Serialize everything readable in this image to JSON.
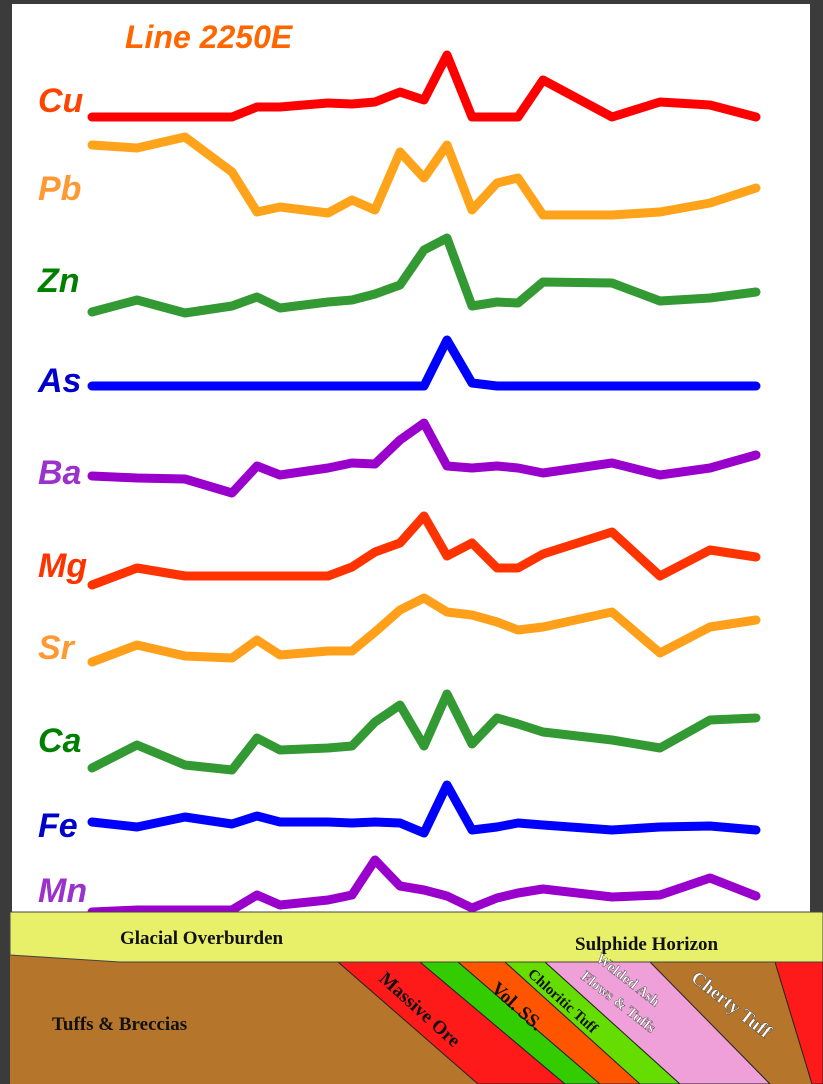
{
  "title": "Line 2250E",
  "title_color": "#ff6600",
  "profiles": [
    {
      "name": "Cu",
      "color": "#ff0000",
      "label_color": "#ff4400",
      "values": [
        1,
        1,
        1,
        1,
        11,
        11,
        15,
        14,
        16,
        26,
        18,
        63,
        1,
        1,
        1,
        38,
        1,
        16,
        13,
        1
      ]
    },
    {
      "name": "Pb",
      "color": "#ffa31a",
      "label_color": "#ff9933",
      "values": [
        75,
        72,
        83,
        48,
        8,
        13,
        7,
        20,
        10,
        68,
        42,
        75,
        10,
        37,
        42,
        5,
        5,
        8,
        17,
        32
      ]
    },
    {
      "name": "Zn",
      "color": "#339933",
      "label_color": "#008000",
      "values": [
        3,
        15,
        2,
        9,
        18,
        7,
        13,
        15,
        21,
        30,
        65,
        77,
        9,
        13,
        12,
        33,
        32,
        14,
        17,
        23
      ]
    },
    {
      "name": "As",
      "color": "#0000ff",
      "label_color": "#0000cc",
      "values": [
        2,
        2,
        2,
        2,
        2,
        2,
        2,
        2,
        2,
        2,
        2,
        48,
        5,
        2,
        2,
        2,
        2,
        2,
        2,
        2
      ]
    },
    {
      "name": "Ba",
      "color": "#9900cc",
      "label_color": "#9933cc",
      "values": [
        24,
        22,
        21,
        7,
        34,
        25,
        32,
        37,
        36,
        60,
        77,
        34,
        32,
        34,
        32,
        27,
        37,
        25,
        32,
        45
      ]
    },
    {
      "name": "Mg",
      "color": "#ff3300",
      "label_color": "#ff3300",
      "values": [
        5,
        22,
        14,
        14,
        14,
        14,
        14,
        23,
        38,
        47,
        74,
        34,
        47,
        22,
        22,
        36,
        58,
        14,
        40,
        33
      ]
    },
    {
      "name": "Sr",
      "color": "#ff9f1a",
      "label_color": "#ff9933",
      "values": [
        8,
        25,
        14,
        12,
        30,
        15,
        19,
        19,
        38,
        60,
        72,
        58,
        55,
        48,
        40,
        43,
        58,
        17,
        43,
        50
      ]
    },
    {
      "name": "Ca",
      "color": "#339933",
      "label_color": "#008000",
      "values": [
        7,
        30,
        10,
        5,
        37,
        25,
        27,
        29,
        53,
        70,
        29,
        81,
        31,
        57,
        51,
        43,
        35,
        27,
        55,
        57
      ]
    },
    {
      "name": "Fe",
      "color": "#0000ff",
      "label_color": "#0000cc",
      "values": [
        18,
        13,
        23,
        16,
        24,
        18,
        18,
        17,
        18,
        17,
        7,
        55,
        10,
        13,
        17,
        15,
        10,
        13,
        14,
        10
      ]
    },
    {
      "name": "Mn",
      "color": "#9900cc",
      "label_color": "#9933cc",
      "values": [
        3,
        5,
        5,
        5,
        20,
        10,
        15,
        20,
        55,
        29,
        25,
        19,
        7,
        17,
        22,
        26,
        18,
        20,
        37,
        19
      ]
    }
  ],
  "section": {
    "overburden": "Glacial  Overburden",
    "horizon": "Sulphide Horizon",
    "host": "Tuffs & Breccias",
    "ore": "Massive Ore",
    "volss": "Vol. SS.",
    "chloritic": "Chloritic Tuff",
    "welded1": "Welded Ash",
    "welded2": "Flows & Tuffs",
    "cherty": "Cherty Tuff"
  }
}
